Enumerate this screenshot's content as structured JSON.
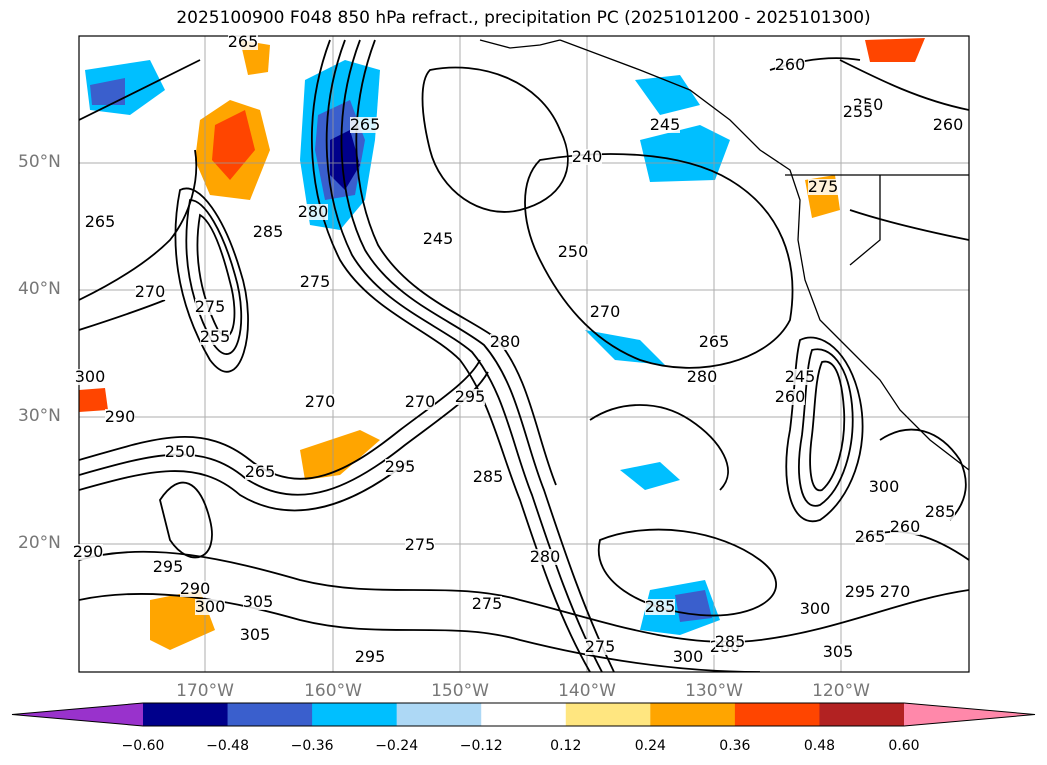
{
  "title": "2025100900 F048 850 hPa refract., precipitation PC (2025101200 - 2025101300)",
  "lat_labels": [
    "50°N",
    "40°N",
    "30°N",
    "20°N"
  ],
  "lon_labels": [
    "170°W",
    "160°W",
    "150°W",
    "140°W",
    "130°W",
    "120°W"
  ],
  "colorbar": {
    "ticks": [
      "−0.60",
      "−0.48",
      "−0.36",
      "−0.24",
      "−0.12",
      "0.12",
      "0.24",
      "0.36",
      "0.48",
      "0.60"
    ],
    "colors": [
      "#9932cc",
      "#00008b",
      "#3a5fcd",
      "#00bfff",
      "#add8f5",
      "#ffffff",
      "#ffe680",
      "#ffa500",
      "#ff4500",
      "#b22222",
      "#ff88aa"
    ]
  },
  "contour_labels": [
    "265",
    "260",
    "250",
    "260",
    "255",
    "245",
    "240",
    "265",
    "280",
    "275",
    "250",
    "245",
    "285",
    "275",
    "265",
    "270",
    "255",
    "300",
    "275",
    "270",
    "280",
    "270",
    "265",
    "280",
    "290",
    "295",
    "270",
    "250",
    "265",
    "295",
    "290",
    "285",
    "275",
    "280",
    "285",
    "265",
    "260",
    "245",
    "300",
    "285",
    "295",
    "290",
    "295",
    "300",
    "305",
    "305",
    "275",
    "295",
    "280",
    "285",
    "300",
    "270",
    "305",
    "275",
    "260",
    "300"
  ]
}
